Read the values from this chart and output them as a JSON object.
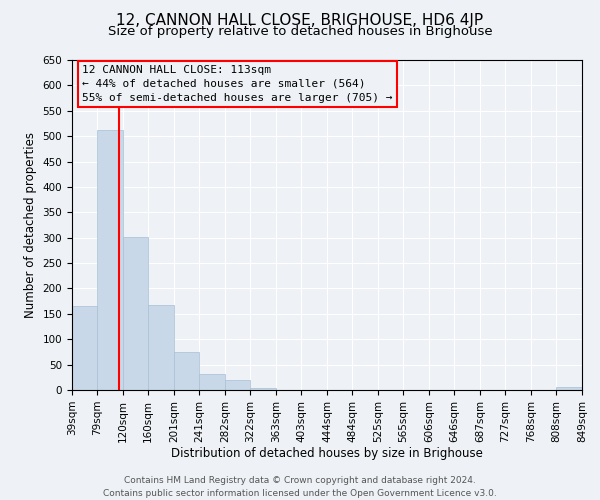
{
  "title": "12, CANNON HALL CLOSE, BRIGHOUSE, HD6 4JP",
  "subtitle": "Size of property relative to detached houses in Brighouse",
  "xlabel": "Distribution of detached houses by size in Brighouse",
  "ylabel": "Number of detached properties",
  "bar_labels": [
    "39sqm",
    "79sqm",
    "120sqm",
    "160sqm",
    "201sqm",
    "241sqm",
    "282sqm",
    "322sqm",
    "363sqm",
    "403sqm",
    "444sqm",
    "484sqm",
    "525sqm",
    "565sqm",
    "606sqm",
    "646sqm",
    "687sqm",
    "727sqm",
    "768sqm",
    "808sqm",
    "849sqm"
  ],
  "bin_edges": [
    39,
    79,
    120,
    160,
    201,
    241,
    282,
    322,
    363,
    403,
    444,
    484,
    525,
    565,
    606,
    646,
    687,
    727,
    768,
    808,
    849
  ],
  "bar_heights": [
    165,
    513,
    302,
    168,
    75,
    32,
    20,
    3,
    0,
    0,
    0,
    0,
    0,
    0,
    0,
    0,
    0,
    0,
    0,
    5
  ],
  "bar_color": "#c8d8e8",
  "bar_edgecolor": "#a8c0d4",
  "vline_x": 113,
  "vline_color": "red",
  "ylim": [
    0,
    650
  ],
  "yticks": [
    0,
    50,
    100,
    150,
    200,
    250,
    300,
    350,
    400,
    450,
    500,
    550,
    600,
    650
  ],
  "annotation_title": "12 CANNON HALL CLOSE: 113sqm",
  "annotation_line1": "← 44% of detached houses are smaller (564)",
  "annotation_line2": "55% of semi-detached houses are larger (705) →",
  "annotation_box_edgecolor": "red",
  "footer_line1": "Contains HM Land Registry data © Crown copyright and database right 2024.",
  "footer_line2": "Contains public sector information licensed under the Open Government Licence v3.0.",
  "background_color": "#eef2f6",
  "grid_color": "#ffffff",
  "title_fontsize": 11,
  "subtitle_fontsize": 9.5,
  "axis_label_fontsize": 8.5,
  "tick_fontsize": 7.5,
  "annotation_fontsize": 8,
  "footer_fontsize": 6.5
}
